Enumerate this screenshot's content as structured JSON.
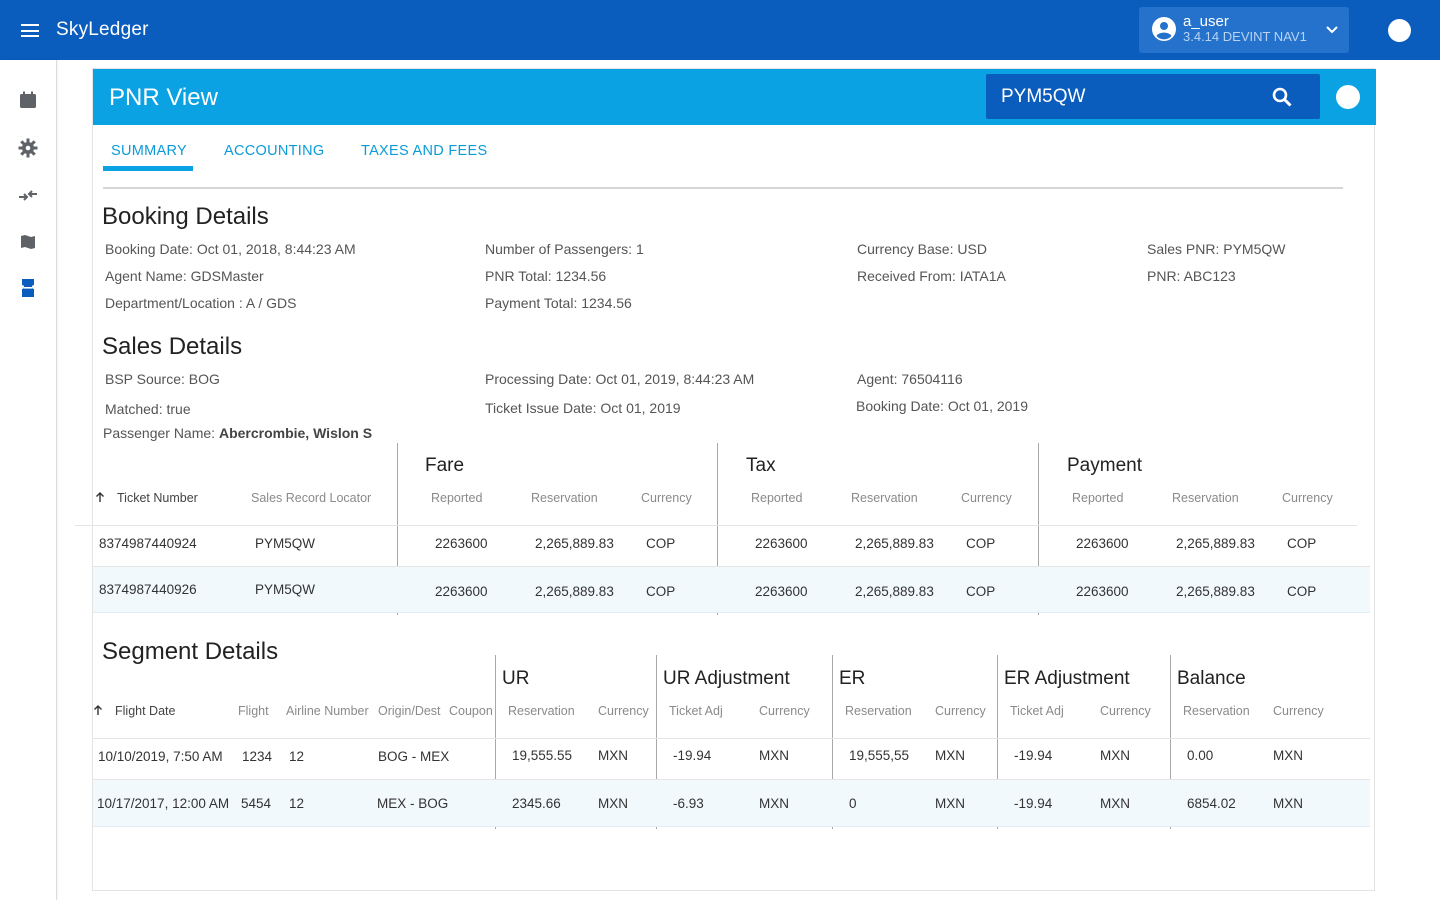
{
  "app": {
    "title": "SkyLedger"
  },
  "user": {
    "name": "a_user",
    "version": "3.4.14 DEVINT NAV1"
  },
  "page": {
    "title": "PNR View"
  },
  "search": {
    "value": "PYM5QW"
  },
  "tabs": [
    "SUMMARY",
    "ACCOUNTING",
    "TAXES AND FEES"
  ],
  "booking": {
    "title": "Booking Details",
    "fields": {
      "booking_date": "Booking Date: Oct 01, 2018, 8:44:23 AM",
      "agent_name": "Agent Name: GDSMaster",
      "department": "Department/Location : A / GDS",
      "passengers": "Number of Passengers: 1",
      "pnr_total": "PNR Total: 1234.56",
      "payment_total": "Payment Total: 1234.56",
      "currency_base": "Currency Base: USD",
      "received_from": "Received From: IATA1A",
      "sales_pnr": "Sales PNR: PYM5QW",
      "pnr": "PNR: ABC123"
    }
  },
  "sales": {
    "title": "Sales Details",
    "fields": {
      "bsp_source": "BSP Source: BOG",
      "matched": "Matched:  true",
      "passenger_label": "Passenger Name: ",
      "passenger_value": "Abercrombie, Wislon S",
      "processing_date": "Processing Date:  Oct 01, 2019, 8:44:23 AM",
      "ticket_issue_date": "Ticket Issue Date: Oct 01, 2019",
      "agent": "Agent: 76504116",
      "booking_date": "Booking Date: Oct  01, 2019"
    },
    "groups": [
      "Fare",
      "Tax",
      "Payment"
    ],
    "headers": {
      "ticket_number": "Ticket Number",
      "sales_record_locator": "Sales Record Locator",
      "reported": "Reported",
      "reservation": "Reservation",
      "currency": "Currency"
    },
    "rows": [
      {
        "ticket": "8374987440924",
        "locator": "PYM5QW",
        "fare_reported": "2263600",
        "fare_reservation": "2,265,889.83",
        "fare_currency": "COP",
        "tax_reported": "2263600",
        "tax_reservation": "2,265,889.83",
        "tax_currency": "COP",
        "pay_reported": "2263600",
        "pay_reservation": "2,265,889.83",
        "pay_currency": "COP"
      },
      {
        "ticket": "8374987440926",
        "locator": "PYM5QW",
        "fare_reported": "2263600",
        "fare_reservation": "2,265,889.83",
        "fare_currency": "COP",
        "tax_reported": "2263600",
        "tax_reservation": "2,265,889.83",
        "tax_currency": "COP",
        "pay_reported": "2263600",
        "pay_reservation": "2,265,889.83",
        "pay_currency": "COP"
      }
    ]
  },
  "segment": {
    "title": "Segment Details",
    "groups": [
      "UR",
      "UR Adjustment",
      "ER",
      "ER Adjustment",
      "Balance"
    ],
    "headers": {
      "flight_date": "Flight Date",
      "flight": "Flight",
      "airline_number": "Airline Number",
      "origin_dest": "Origin/Dest",
      "coupon": "Coupon",
      "reservation": "Reservation",
      "currency": "Currency",
      "ticket_adj": "Ticket Adj"
    },
    "rows": [
      {
        "flight_date": "10/10/2019, 7:50 AM",
        "flight": "1234",
        "airline": "12",
        "origin_dest": "BOG - MEX",
        "ur_res": "19,555.55",
        "ur_cur": "MXN",
        "ura_adj": "-19.94",
        "ura_cur": "MXN",
        "er_res": "19,555,55",
        "er_cur": "MXN",
        "era_adj": "-19.94",
        "era_cur": "MXN",
        "bal_res": "0.00",
        "bal_cur": "MXN"
      },
      {
        "flight_date": "10/17/2017, 12:00 AM",
        "flight": "5454",
        "airline": "12",
        "origin_dest": "MEX - BOG",
        "ur_res": "2345.66",
        "ur_cur": "MXN",
        "ura_adj": "-6.93",
        "ura_cur": "MXN",
        "er_res": "0",
        "er_cur": "MXN",
        "era_adj": "-19.94",
        "era_cur": "MXN",
        "bal_res": "6854.02",
        "bal_cur": "MXN"
      }
    ]
  },
  "colors": {
    "primary": "#0a5cbd",
    "header": "#0aa2e3",
    "accent": "#0a9bd8"
  },
  "icons": {
    "menu": "hamburger-icon",
    "user": "account-circle-icon",
    "chevron": "chevron-down-icon",
    "search": "search-icon"
  }
}
